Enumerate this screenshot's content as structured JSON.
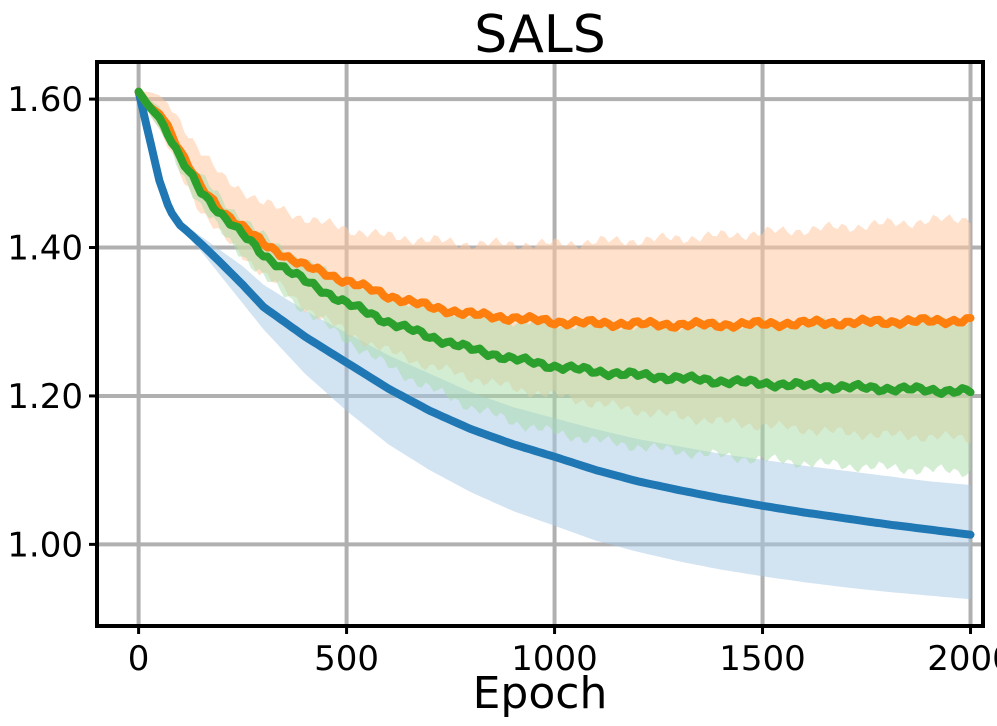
{
  "chart_data": {
    "type": "line",
    "title": "SALS",
    "xlabel": "Epoch",
    "ylabel": "",
    "xlim": [
      -100,
      2030
    ],
    "ylim": [
      0.89,
      1.65
    ],
    "xticks": [
      0,
      500,
      1000,
      1500,
      2000
    ],
    "xtick_labels": [
      "0",
      "500",
      "1000",
      "1500",
      "2000"
    ],
    "yticks": [
      1.0,
      1.2,
      1.4,
      1.6
    ],
    "ytick_labels": [
      "1.00",
      "1.20",
      "1.40",
      "1.60"
    ],
    "grid": true,
    "legend": null,
    "series": [
      {
        "color": "#1f77b4",
        "band_color": "#a6c8e6",
        "band_opacity": 0.5,
        "noise": 0,
        "x": [
          0,
          25,
          50,
          75,
          100,
          125,
          150,
          200,
          250,
          300,
          400,
          500,
          600,
          700,
          800,
          900,
          1000,
          1100,
          1200,
          1300,
          1400,
          1500,
          1600,
          1700,
          1800,
          1900,
          2000
        ],
        "mean": [
          1.61,
          1.55,
          1.49,
          1.45,
          1.43,
          1.418,
          1.405,
          1.378,
          1.35,
          1.32,
          1.28,
          1.245,
          1.21,
          1.18,
          1.155,
          1.135,
          1.118,
          1.1,
          1.085,
          1.073,
          1.062,
          1.052,
          1.043,
          1.035,
          1.027,
          1.02,
          1.013
        ],
        "lower": [
          1.61,
          1.55,
          1.49,
          1.45,
          1.43,
          1.41,
          1.395,
          1.36,
          1.325,
          1.29,
          1.23,
          1.18,
          1.135,
          1.1,
          1.07,
          1.045,
          1.025,
          1.005,
          0.99,
          0.977,
          0.966,
          0.957,
          0.949,
          0.942,
          0.936,
          0.931,
          0.926
        ],
        "upper": [
          1.61,
          1.55,
          1.49,
          1.45,
          1.43,
          1.425,
          1.415,
          1.395,
          1.375,
          1.35,
          1.315,
          1.285,
          1.255,
          1.23,
          1.205,
          1.185,
          1.17,
          1.155,
          1.142,
          1.132,
          1.122,
          1.114,
          1.106,
          1.099,
          1.092,
          1.085,
          1.08
        ]
      },
      {
        "color": "#ff7f0e",
        "band_color": "#ffc9a3",
        "band_opacity": 0.55,
        "noise": 0.005,
        "x": [
          0,
          25,
          50,
          75,
          100,
          150,
          200,
          300,
          400,
          500,
          600,
          700,
          800,
          900,
          1000,
          1100,
          1200,
          1300,
          1400,
          1500,
          1600,
          1700,
          1800,
          1900,
          2000
        ],
        "mean": [
          1.61,
          1.59,
          1.58,
          1.56,
          1.53,
          1.48,
          1.45,
          1.405,
          1.375,
          1.355,
          1.335,
          1.32,
          1.31,
          1.305,
          1.3,
          1.298,
          1.297,
          1.296,
          1.296,
          1.297,
          1.298,
          1.299,
          1.3,
          1.301,
          1.302
        ],
        "lower": [
          1.61,
          1.58,
          1.56,
          1.53,
          1.5,
          1.45,
          1.415,
          1.365,
          1.32,
          1.285,
          1.26,
          1.24,
          1.225,
          1.21,
          1.2,
          1.19,
          1.18,
          1.172,
          1.165,
          1.16,
          1.155,
          1.15,
          1.147,
          1.145,
          1.143
        ],
        "upper": [
          1.61,
          1.61,
          1.605,
          1.59,
          1.57,
          1.53,
          1.495,
          1.46,
          1.44,
          1.425,
          1.415,
          1.41,
          1.405,
          1.405,
          1.405,
          1.408,
          1.41,
          1.413,
          1.416,
          1.42,
          1.424,
          1.428,
          1.432,
          1.436,
          1.44
        ]
      },
      {
        "color": "#2ca02c",
        "band_color": "#a8dba8",
        "band_opacity": 0.5,
        "noise": 0.005,
        "x": [
          0,
          25,
          50,
          75,
          100,
          150,
          200,
          300,
          400,
          500,
          600,
          700,
          800,
          900,
          1000,
          1100,
          1200,
          1300,
          1400,
          1500,
          1600,
          1700,
          1800,
          1900,
          2000
        ],
        "mean": [
          1.61,
          1.59,
          1.575,
          1.55,
          1.52,
          1.475,
          1.445,
          1.39,
          1.355,
          1.325,
          1.3,
          1.28,
          1.263,
          1.25,
          1.24,
          1.233,
          1.228,
          1.224,
          1.22,
          1.217,
          1.214,
          1.212,
          1.21,
          1.208,
          1.206
        ],
        "lower": [
          1.61,
          1.58,
          1.56,
          1.535,
          1.505,
          1.455,
          1.42,
          1.36,
          1.315,
          1.275,
          1.24,
          1.21,
          1.185,
          1.165,
          1.15,
          1.14,
          1.132,
          1.125,
          1.119,
          1.114,
          1.11,
          1.106,
          1.103,
          1.1,
          1.098
        ],
        "upper": [
          1.61,
          1.6,
          1.59,
          1.565,
          1.535,
          1.495,
          1.465,
          1.415,
          1.38,
          1.355,
          1.335,
          1.32,
          1.31,
          1.302,
          1.298,
          1.296,
          1.295,
          1.295,
          1.296,
          1.297,
          1.298,
          1.299,
          1.3,
          1.301,
          1.302
        ]
      }
    ]
  }
}
